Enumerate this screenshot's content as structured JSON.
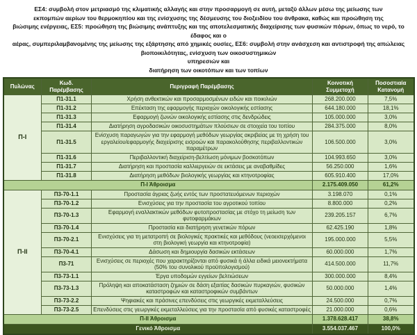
{
  "intro": {
    "lines": [
      "ΕΣ4: συμβολή στον μετριασμό της κλιματικής αλλαγής και στην προσαρμογή σε αυτή, μεταξύ άλλων μέσω της μείωσης των",
      "εκπομπών αερίων του θερμοκηπίου και της ενίσχυσης της δέσμευσης του διοξειδίου του άνθρακα, καθώς και προώθηση της",
      "βιώσιμης ενέργειας, ΕΣ5: προώθηση της βιώσιμης ανάπτυξης και της αποτελεσματικής διαχείρισης των φυσικών πόρων, όπως το νερό, το έδαφος και ο",
      "αέρας, συμπεριλαμβανομένης της μείωσης της εξάρτησης από χημικές ουσίες, ΕΣ6: συμβολή στην ανάσχεση και αντιστροφή της απώλειας βιοποικιλότητας, ενίσχυση των οικοσυστημικών",
      "υπηρεσιών και",
      "διατήρηση των οικοτόπων και των τοπίων"
    ]
  },
  "table": {
    "headers": [
      "Πυλώνας",
      "Κωδ. Παρέμβασης",
      "Περιγραφή Παρέμβασης",
      "Κοινοτική Συμμετοχή",
      "Ποσοστιαία Κατανομή"
    ],
    "groups": [
      {
        "pillar": "Π-Ι",
        "rows": [
          {
            "code": "Π1-31.1",
            "desc": "Χρήση ανθεκτικών και προσαρμοσμένων ειδών και ποικιλιών",
            "amount": "268.200.000",
            "pct": "7,5%"
          },
          {
            "code": "Π1-31.2",
            "desc": "Επέκταση της εφαρμογής περιοχών οικολογικής εστίασης",
            "amount": "644.180.000",
            "pct": "18,1%"
          },
          {
            "code": "Π1-31.3",
            "desc": "Εφαρμογή ζωνών οικολογικής εστίασης στις δενδρώδεις",
            "amount": "105.000.000",
            "pct": "3,0%"
          },
          {
            "code": "Π1-31.4",
            "desc": "Διατήρηση αγροδασικών οικοσυστημάτων πλούσιων σε στοιχεία του τοπίου",
            "amount": "284.375.000",
            "pct": "8,0%"
          },
          {
            "code": "Π1-31.5",
            "desc": "Ενίσχυση παραγωγών για την εφαρμογή μεθόδων γεωργίας ακριβείας με τη χρήση του εργαλείου/εφαρμογής διαχείρισης εισροών και παρακολούθησης περιβαλλοντικών παραμέτρων",
            "amount": "106.500.000",
            "pct": "3,0%"
          },
          {
            "code": "Π1-31.6",
            "desc": "Περιβαλλοντική διαχείριση-βελτίωση μόνιμων βοσκοτόπων",
            "amount": "104.993.650",
            "pct": "3,0%"
          },
          {
            "code": "Π1-31.7",
            "desc": "Διατήρηση και προστασία καλλιεργειών σε εκτάσεις με αναβαθμίδες",
            "amount": "56.250.000",
            "pct": "1,6%"
          },
          {
            "code": "Π1-31.8",
            "desc": "Διατήρηση μεθόδων βιολογικής γεωργίας και κτηνοτροφίας",
            "amount": "605.910.400",
            "pct": "17,0%"
          }
        ],
        "subtotal": {
          "label": "Π-Ι Άθροισμα",
          "amount": "2.175.409.050",
          "pct": "61,2%"
        }
      },
      {
        "pillar": "Π-ΙΙ",
        "rows": [
          {
            "code": "Π3-70-1.1",
            "desc": "Προστασία άγριας ζωής εντός των προστατευόμενων περιοχών",
            "amount": "3.198.070",
            "pct": "0,1%"
          },
          {
            "code": "Π3-70-1.2",
            "desc": "Ενισχύσεις για την προστασία του αγροτικού τοπίου",
            "amount": "8.800.000",
            "pct": "0,2%"
          },
          {
            "code": "Π3-70-1.3",
            "desc": "Εφαρμογή εναλλακτικών μεθόδων φυτοπροστασίας με στόχο τη μείωση των φυτοφαρμάκων",
            "amount": "239.205.157",
            "pct": "6,7%"
          },
          {
            "code": "Π3-70-1.4",
            "desc": "Προστασία και διατήρηση γενετικών πόρων",
            "amount": "62.425.190",
            "pct": "1,8%"
          },
          {
            "code": "Π3-70-2.1",
            "desc": "Ενισχύσεις για τη μετατροπή σε βιολογικές πρακτικές και μεθόδους (νεοεισερχόμενοι στη βιολογική γεωργία και κτηνοτροφία)",
            "amount": "195.000.000",
            "pct": "5,5%"
          },
          {
            "code": "Π3-70-4.1",
            "desc": "Δάσωση και δημιουργία δασικών εκτάσεων",
            "amount": "60.000.000",
            "pct": "1,7%"
          },
          {
            "code": "Π3-71",
            "desc": "Ενισχύσεις σε περιοχές που χαρακτηρίζονται από φυσικά ή άλλα ειδικά μειονεκτήματα (50% του συνολικού προϋπολογισμού)",
            "amount": "414.500.000",
            "pct": "11,7%"
          },
          {
            "code": "Π3-73-1.1",
            "desc": "Έργα υποδομών εγγείων βελτιώσεων",
            "amount": "300.000.000",
            "pct": "8,4%"
          },
          {
            "code": "Π3-73-1.3",
            "desc": "Πρόληψη και αποκατάσταση ζημιών σε δάση εξαιτίας δασικών πυρκαγιών, φυσικών καταστροφών και καταστροφικών συμβάντων",
            "amount": "50.000.000",
            "pct": "1,4%"
          },
          {
            "code": "Π3-73-2.2",
            "desc": "Ψηφιακές και πράσινες επενδύσεις στις γεωργικές εκμεταλλεύσεις",
            "amount": "24.500.000",
            "pct": "0,7%"
          },
          {
            "code": "Π3-73-2.5",
            "desc": "Επενδύσεις στις γεωργικές εκμεταλλεύσεις για την προστασία από φυσικές καταστροφές",
            "amount": "21.000.000",
            "pct": "0,6%"
          }
        ],
        "subtotal": {
          "label": "Π-ΙΙ Άθροισμα",
          "amount": "1.378.628.417",
          "pct": "38,8%"
        }
      }
    ],
    "grand_total": {
      "label": "Γενικό Άθροισμα",
      "amount": "3.554.037.467",
      "pct": "100,0%"
    }
  },
  "colors": {
    "header_bg": "#4a652c",
    "row_bg": "#d8e8c6",
    "pillar_bg": "#e7f1db",
    "subtotal_bg": "#b5d294",
    "grand_total_bg": "#3c551f",
    "border": "#4e6436"
  }
}
